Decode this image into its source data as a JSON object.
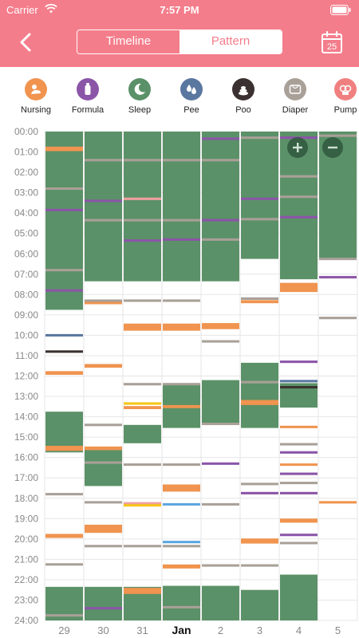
{
  "status_bar": {
    "carrier": "Carrier",
    "time": "7:57 PM"
  },
  "header": {
    "tabs": [
      {
        "label": "Timeline",
        "selected": true
      },
      {
        "label": "Pattern",
        "selected": false
      }
    ],
    "calendar_day": "25",
    "colors": {
      "header": "#f47d8b",
      "white": "#ffffff"
    }
  },
  "categories": [
    {
      "label": "Nursing",
      "icon": "nursing-icon",
      "color": "#f0944f"
    },
    {
      "label": "Formula",
      "icon": "bottle-icon",
      "color": "#8b55a8"
    },
    {
      "label": "Sleep",
      "icon": "moon-icon",
      "color": "#5b9168"
    },
    {
      "label": "Pee",
      "icon": "drops-icon",
      "color": "#5a77a0"
    },
    {
      "label": "Poo",
      "icon": "poo-icon",
      "color": "#3b3130"
    },
    {
      "label": "Diaper",
      "icon": "diaper-icon",
      "color": "#a9a098"
    },
    {
      "label": "Pump",
      "icon": "pump-icon",
      "color": "#f08080"
    }
  ],
  "chart_data": {
    "type": "timeline",
    "y_ticks": [
      "00:00",
      "01:00",
      "02:00",
      "03:00",
      "04:00",
      "05:00",
      "06:00",
      "07:00",
      "08:00",
      "09:00",
      "10:00",
      "11:00",
      "12:00",
      "13:00",
      "14:00",
      "15:00",
      "16:00",
      "17:00",
      "18:00",
      "19:00",
      "20:00",
      "21:00",
      "22:00",
      "23:00",
      "24:00"
    ],
    "days": [
      "29",
      "30",
      "31",
      "Jan",
      "2",
      "3",
      "4",
      "5"
    ],
    "bold_day": "Jan",
    "colors": {
      "sleep": "#5b9168",
      "nursing": "#f0944f",
      "formula": "#8b55a8",
      "diaper": "#a9a098",
      "pee": "#5a77a0",
      "poo": "#3b3130",
      "pump": "#f0a0a0",
      "yellow": "#f5c518",
      "blue": "#5ba6e0",
      "grid": "#e6e6e6"
    },
    "sleep_blocks": [
      [
        0,
        0.0,
        8.75
      ],
      [
        0,
        13.75,
        15.75
      ],
      [
        0,
        22.35,
        24.0
      ],
      [
        1,
        0.0,
        7.35
      ],
      [
        1,
        15.6,
        17.4
      ],
      [
        1,
        22.35,
        24.0
      ],
      [
        2,
        0.0,
        7.35
      ],
      [
        2,
        14.4,
        15.3
      ],
      [
        2,
        22.35,
        24.0
      ],
      [
        3,
        0.0,
        7.35
      ],
      [
        3,
        12.35,
        14.55
      ],
      [
        3,
        22.3,
        24.0
      ],
      [
        4,
        0.0,
        7.35
      ],
      [
        4,
        12.2,
        14.35
      ],
      [
        4,
        22.3,
        24.0
      ],
      [
        5,
        0.0,
        6.25
      ],
      [
        5,
        11.35,
        14.55
      ],
      [
        5,
        22.5,
        24.0
      ],
      [
        6,
        0.0,
        7.25
      ],
      [
        6,
        12.35,
        13.55
      ],
      [
        6,
        21.75,
        24.0
      ],
      [
        7,
        0.0,
        6.25
      ]
    ],
    "events": [
      [
        0,
        0.85,
        "nursing",
        0.22
      ],
      [
        0,
        2.8,
        "diaper",
        0.12
      ],
      [
        0,
        3.85,
        "formula",
        0.12
      ],
      [
        0,
        6.8,
        "diaper",
        0.12
      ],
      [
        0,
        7.8,
        "formula",
        0.12
      ],
      [
        0,
        10.0,
        "pee",
        0.12
      ],
      [
        0,
        10.8,
        "poo",
        0.12
      ],
      [
        0,
        11.85,
        "nursing",
        0.18
      ],
      [
        0,
        15.55,
        "nursing",
        0.25
      ],
      [
        0,
        17.8,
        "diaper",
        0.12
      ],
      [
        0,
        19.85,
        "nursing",
        0.2
      ],
      [
        0,
        21.25,
        "diaper",
        0.12
      ],
      [
        0,
        23.75,
        "diaper",
        0.12
      ],
      [
        1,
        1.4,
        "diaper",
        0.12
      ],
      [
        1,
        3.4,
        "formula",
        0.12
      ],
      [
        1,
        4.35,
        "diaper",
        0.12
      ],
      [
        1,
        8.4,
        "nursing",
        0.15
      ],
      [
        1,
        8.3,
        "diaper",
        0.1
      ],
      [
        1,
        11.5,
        "nursing",
        0.18
      ],
      [
        1,
        14.4,
        "diaper",
        0.12
      ],
      [
        1,
        15.55,
        "nursing",
        0.18
      ],
      [
        1,
        16.25,
        "diaper",
        0.12
      ],
      [
        1,
        18.2,
        "diaper",
        0.12
      ],
      [
        1,
        19.5,
        "nursing",
        0.4
      ],
      [
        1,
        20.35,
        "diaper",
        0.12
      ],
      [
        1,
        23.4,
        "formula",
        0.12
      ],
      [
        2,
        1.4,
        "diaper",
        0.12
      ],
      [
        2,
        3.3,
        "pump",
        0.12
      ],
      [
        2,
        4.35,
        "diaper",
        0.12
      ],
      [
        2,
        5.35,
        "formula",
        0.12
      ],
      [
        2,
        8.3,
        "diaper",
        0.12
      ],
      [
        2,
        9.6,
        "nursing",
        0.35
      ],
      [
        2,
        12.4,
        "diaper",
        0.12
      ],
      [
        2,
        13.35,
        "yellow",
        0.12
      ],
      [
        2,
        13.55,
        "nursing",
        0.15
      ],
      [
        2,
        16.35,
        "diaper",
        0.12
      ],
      [
        2,
        18.25,
        "pump",
        0.12
      ],
      [
        2,
        18.35,
        "yellow",
        0.1
      ],
      [
        2,
        20.35,
        "diaper",
        0.12
      ],
      [
        2,
        22.55,
        "nursing",
        0.3
      ],
      [
        3,
        1.4,
        "diaper",
        0.12
      ],
      [
        3,
        4.35,
        "diaper",
        0.12
      ],
      [
        3,
        5.3,
        "formula",
        0.12
      ],
      [
        3,
        8.3,
        "diaper",
        0.12
      ],
      [
        3,
        9.6,
        "nursing",
        0.35
      ],
      [
        3,
        12.4,
        "diaper",
        0.12
      ],
      [
        3,
        13.5,
        "nursing",
        0.15
      ],
      [
        3,
        16.35,
        "diaper",
        0.12
      ],
      [
        3,
        17.5,
        "nursing",
        0.35
      ],
      [
        3,
        18.3,
        "blue",
        0.12
      ],
      [
        3,
        20.15,
        "blue",
        0.12
      ],
      [
        3,
        20.35,
        "diaper",
        0.12
      ],
      [
        3,
        21.35,
        "nursing",
        0.2
      ],
      [
        3,
        23.35,
        "diaper",
        0.12
      ],
      [
        4,
        0.35,
        "formula",
        0.12
      ],
      [
        4,
        1.4,
        "diaper",
        0.12
      ],
      [
        4,
        4.35,
        "formula",
        0.12
      ],
      [
        4,
        5.3,
        "diaper",
        0.12
      ],
      [
        4,
        9.55,
        "nursing",
        0.3
      ],
      [
        4,
        10.3,
        "diaper",
        0.12
      ],
      [
        4,
        14.35,
        "diaper",
        0.12
      ],
      [
        4,
        16.3,
        "formula",
        0.12
      ],
      [
        4,
        18.3,
        "diaper",
        0.12
      ],
      [
        4,
        21.3,
        "diaper",
        0.12
      ],
      [
        5,
        0.3,
        "diaper",
        0.12
      ],
      [
        5,
        3.3,
        "formula",
        0.12
      ],
      [
        5,
        4.3,
        "diaper",
        0.12
      ],
      [
        5,
        8.2,
        "diaper",
        0.12
      ],
      [
        5,
        8.35,
        "nursing",
        0.15
      ],
      [
        5,
        12.3,
        "diaper",
        0.12
      ],
      [
        5,
        13.3,
        "nursing",
        0.25
      ],
      [
        5,
        17.3,
        "diaper",
        0.12
      ],
      [
        5,
        17.75,
        "formula",
        0.12
      ],
      [
        5,
        20.1,
        "nursing",
        0.25
      ],
      [
        5,
        21.3,
        "diaper",
        0.12
      ],
      [
        6,
        0.3,
        "formula",
        0.12
      ],
      [
        6,
        2.2,
        "diaper",
        0.12
      ],
      [
        6,
        3.2,
        "diaper",
        0.12
      ],
      [
        6,
        4.2,
        "formula",
        0.12
      ],
      [
        6,
        7.65,
        "nursing",
        0.45
      ],
      [
        6,
        11.3,
        "formula",
        0.12
      ],
      [
        6,
        12.25,
        "pee",
        0.12
      ],
      [
        6,
        12.55,
        "poo",
        0.12
      ],
      [
        6,
        14.5,
        "nursing",
        0.12
      ],
      [
        6,
        15.35,
        "diaper",
        0.12
      ],
      [
        6,
        15.75,
        "formula",
        0.12
      ],
      [
        6,
        16.35,
        "nursing",
        0.12
      ],
      [
        6,
        16.8,
        "formula",
        0.12
      ],
      [
        6,
        17.25,
        "diaper",
        0.12
      ],
      [
        6,
        17.75,
        "formula",
        0.12
      ],
      [
        6,
        19.1,
        "nursing",
        0.2
      ],
      [
        6,
        19.8,
        "formula",
        0.12
      ],
      [
        6,
        20.2,
        "diaper",
        0.12
      ],
      [
        7,
        0.2,
        "diaper",
        0.12
      ],
      [
        7,
        6.25,
        "diaper",
        0.12
      ],
      [
        7,
        7.15,
        "formula",
        0.12
      ],
      [
        7,
        9.15,
        "diaper",
        0.12
      ],
      [
        7,
        18.2,
        "nursing",
        0.12
      ]
    ]
  }
}
